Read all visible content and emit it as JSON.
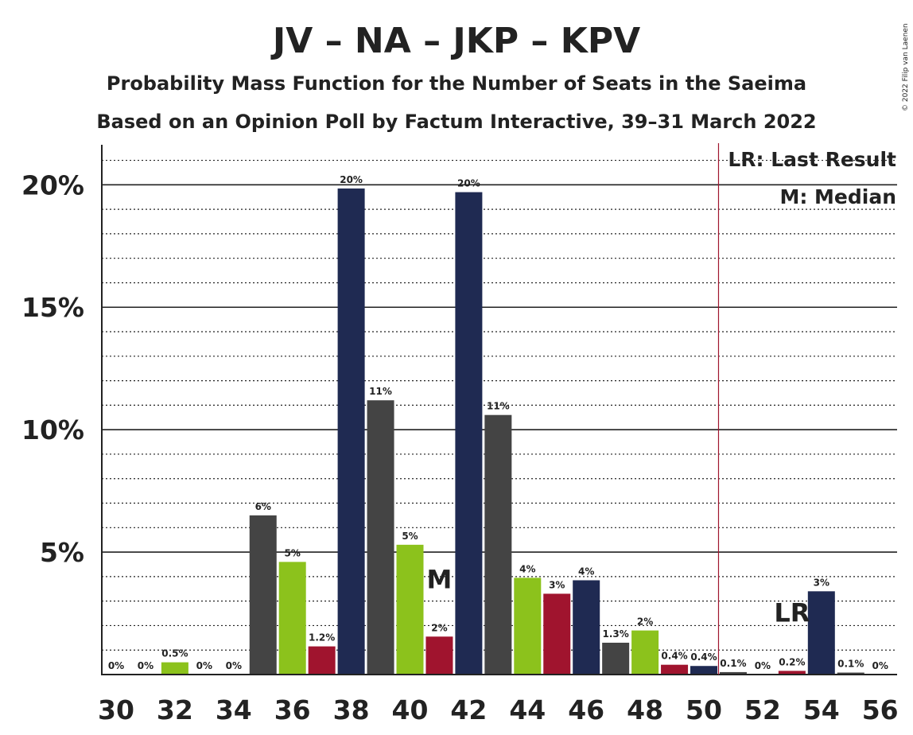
{
  "chart_data": {
    "type": "bar",
    "title": "JV – NA – JKP – KPV",
    "subtitle1": "Probability Mass Function for the Number of Seats in the Saeima",
    "subtitle2": "Based on an Opinion Poll by Factum Interactive, 39–31 March 2022",
    "copyright": "© 2022 Filip van Laenen",
    "x": [
      30,
      31,
      32,
      33,
      34,
      35,
      36,
      37,
      38,
      39,
      40,
      41,
      42,
      43,
      44,
      45,
      46,
      47,
      48,
      49,
      50,
      51,
      52,
      53,
      54,
      55,
      56
    ],
    "values": [
      0,
      0,
      0.5,
      0,
      0,
      6.5,
      4.6,
      1.15,
      19.85,
      11.2,
      5.3,
      1.55,
      19.7,
      10.6,
      3.95,
      3.3,
      3.85,
      1.3,
      1.8,
      0.4,
      0.35,
      0.1,
      0,
      0.15,
      3.4,
      0.08,
      0
    ],
    "labels": [
      "0%",
      "0%",
      "0.5%",
      "0%",
      "0%",
      "6%",
      "5%",
      "1.2%",
      "20%",
      "11%",
      "5%",
      "2%",
      "20%",
      "11%",
      "4%",
      "3%",
      "4%",
      "1.3%",
      "2%",
      "0.4%",
      "0.4%",
      "0.1%",
      "0%",
      "0.2%",
      "3%",
      "0.1%",
      "0%"
    ],
    "bar_colors": [
      "#444444",
      "#444444",
      "#8CC21C",
      "#A0142E",
      "#1F2A52",
      "#444444",
      "#8CC21C",
      "#A0142E",
      "#1F2A52",
      "#444444",
      "#8CC21C",
      "#A0142E",
      "#1F2A52",
      "#444444",
      "#8CC21C",
      "#A0142E",
      "#1F2A52",
      "#444444",
      "#8CC21C",
      "#A0142E",
      "#1F2A52",
      "#444444",
      "#8CC21C",
      "#A0142E",
      "#1F2A52",
      "#444444",
      "#8CC21C"
    ],
    "x_tick_labels": [
      "30",
      "32",
      "34",
      "36",
      "38",
      "40",
      "42",
      "44",
      "46",
      "48",
      "50",
      "52",
      "54",
      "56"
    ],
    "y_ticks": [
      5,
      10,
      15,
      20
    ],
    "y_tick_labels": [
      "5%",
      "10%",
      "15%",
      "20%"
    ],
    "ylim": [
      0,
      21.7
    ],
    "median": 41,
    "median_label": "M",
    "last_result": 53,
    "last_result_label": "LR",
    "majority_line": 50.5,
    "legend": [
      "LR: Last Result",
      "M: Median"
    ],
    "grid": true,
    "legend_position": "top-right"
  }
}
